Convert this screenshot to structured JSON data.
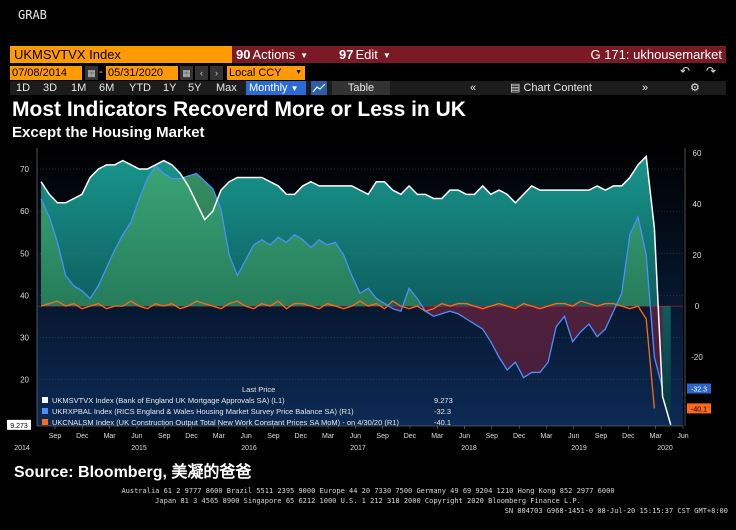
{
  "grab_label": "GRAB",
  "command_bar": {
    "ticker": "UKMSVTVX Index",
    "actions_num": "90",
    "actions_label": "Actions",
    "edit_num": "97",
    "edit_label": "Edit",
    "function_title": "G 171: ukhousemarket"
  },
  "date_range": {
    "start": "07/08/2014",
    "end": "05/31/2020",
    "currency": "Local CCY"
  },
  "periods": [
    "1D",
    "3D",
    "1M",
    "6M",
    "YTD",
    "1Y",
    "5Y",
    "Max"
  ],
  "frequency": "Monthly",
  "table_label": "Table",
  "chart_content_label": "Chart Content",
  "title": "Most Indicators Recoverd More or Less in UK",
  "subtitle": "Except the Housing Market",
  "legend": {
    "header": "Last Price",
    "entries": [
      {
        "text": "UKMSVTVX Index (Bank of England UK Mortgage Approvals SA)  (L1)",
        "value": "9.273"
      },
      {
        "text": "UKRXPBAL Index (RICS England & Wales Housing Market Survey Price Balance SA)  (R1)",
        "value": "-32.3"
      },
      {
        "text": "UKCNALSM Index (UK Construction Output Total New Work Constant Prices SA MoM) - on 4/30/20  (R1)",
        "value": "-40.1"
      }
    ]
  },
  "source": "Source: Bloomberg, 美凝的爸爸",
  "footer": {
    "line1": "Australia 61 2 9777 8600 Brazil 5511 2395 9000 Europe 44 20 7330 7500 Germany 49 69 9204 1210 Hong Kong 852 2977 6000",
    "line2": "Japan 81 3 4565 8900          Singapore 65 6212 1000          U.S. 1 212 318 2000          Copyright 2020 Bloomberg Finance L.P.",
    "line3": "SN 804703 G968-1451-0 08-Jul-20 15:15:37 CST  GMT+8:00"
  },
  "chart_data": {
    "type": "area",
    "title": "Most Indicators Recoverd More or Less in UK",
    "subtitle": "Except the Housing Market",
    "x_start": "2014-07",
    "x_end": "2020-05",
    "x_month_labels": [
      "Sep",
      "Dec",
      "Mar",
      "Jun",
      "Sep",
      "Dec",
      "Mar",
      "Jun",
      "Sep",
      "Dec",
      "Mar",
      "Jun",
      "Sep",
      "Dec",
      "Mar",
      "Jun",
      "Sep",
      "Dec",
      "Mar",
      "Jun",
      "Sep",
      "Dec",
      "Mar",
      "Jun"
    ],
    "x_year_labels": [
      "2014",
      "2015",
      "2016",
      "2017",
      "2018",
      "2019",
      "2020"
    ],
    "left_axis": {
      "range": [
        9,
        75
      ],
      "ticks": [
        20,
        30,
        40,
        50,
        60,
        70
      ]
    },
    "right_axis": {
      "range": [
        -47,
        62
      ],
      "ticks": [
        -20,
        0,
        20,
        40,
        60
      ]
    },
    "series": [
      {
        "name": "UKMSVTVX Index",
        "axis": "left",
        "color": "#ffffff",
        "last": 9.273,
        "values": [
          67,
          64,
          62,
          62,
          63,
          64,
          68,
          70,
          71,
          71,
          72,
          71,
          70,
          70,
          71,
          72,
          71,
          69,
          66,
          62,
          58,
          60,
          65,
          67,
          68,
          68,
          68,
          68,
          67,
          66,
          64,
          64,
          66,
          67,
          66,
          66,
          66,
          66,
          66,
          65,
          64,
          67,
          67,
          65,
          64,
          66,
          64,
          64,
          63,
          63,
          65,
          65,
          64,
          64,
          66,
          64,
          65,
          64,
          62,
          64,
          66,
          65,
          65,
          65,
          65,
          65,
          65,
          65,
          66,
          65,
          66,
          66,
          68,
          71,
          73,
          56,
          16,
          9.273
        ]
      },
      {
        "name": "UKRXPBAL Index",
        "axis": "right",
        "color": "#4a90ff",
        "last": -32.3,
        "values": [
          42,
          35,
          25,
          12,
          8,
          6,
          3,
          8,
          15,
          22,
          28,
          33,
          42,
          50,
          55,
          52,
          50,
          50,
          51,
          52,
          49,
          46,
          38,
          20,
          12,
          18,
          24,
          26,
          24,
          27,
          25,
          28,
          26,
          23,
          26,
          24,
          25,
          20,
          12,
          5,
          7,
          3,
          1,
          -1,
          -2,
          7,
          3,
          -2,
          -4,
          -3,
          -2,
          -3,
          -5,
          -7,
          -9,
          -14,
          -20,
          -25,
          -22,
          -28,
          -26,
          -26,
          -22,
          -8,
          -4,
          -14,
          -10,
          -7,
          -12,
          -9,
          -2,
          5,
          28,
          35,
          20,
          -20,
          -32.3
        ]
      },
      {
        "name": "UKCNALSM Index",
        "axis": "right",
        "color": "#ff6a1a",
        "last": -40.1,
        "values": [
          0,
          1,
          2,
          0,
          1,
          -1,
          0,
          1,
          -1,
          0,
          0,
          2,
          0,
          -1,
          1,
          0,
          1,
          -1,
          0,
          2,
          1,
          0,
          -1,
          1,
          2,
          0,
          -1,
          1,
          0,
          2,
          -1,
          1,
          1,
          0,
          -1,
          1,
          0,
          -1,
          0,
          2,
          0,
          1,
          -1,
          2,
          0,
          -1,
          0,
          -2,
          -1,
          1,
          0,
          1,
          1,
          0,
          -1,
          0,
          1,
          0,
          -1,
          1,
          0,
          -1,
          0,
          1,
          1,
          0,
          2,
          1,
          0,
          1,
          1,
          0,
          -1,
          0,
          -5,
          -40.1
        ]
      }
    ]
  }
}
